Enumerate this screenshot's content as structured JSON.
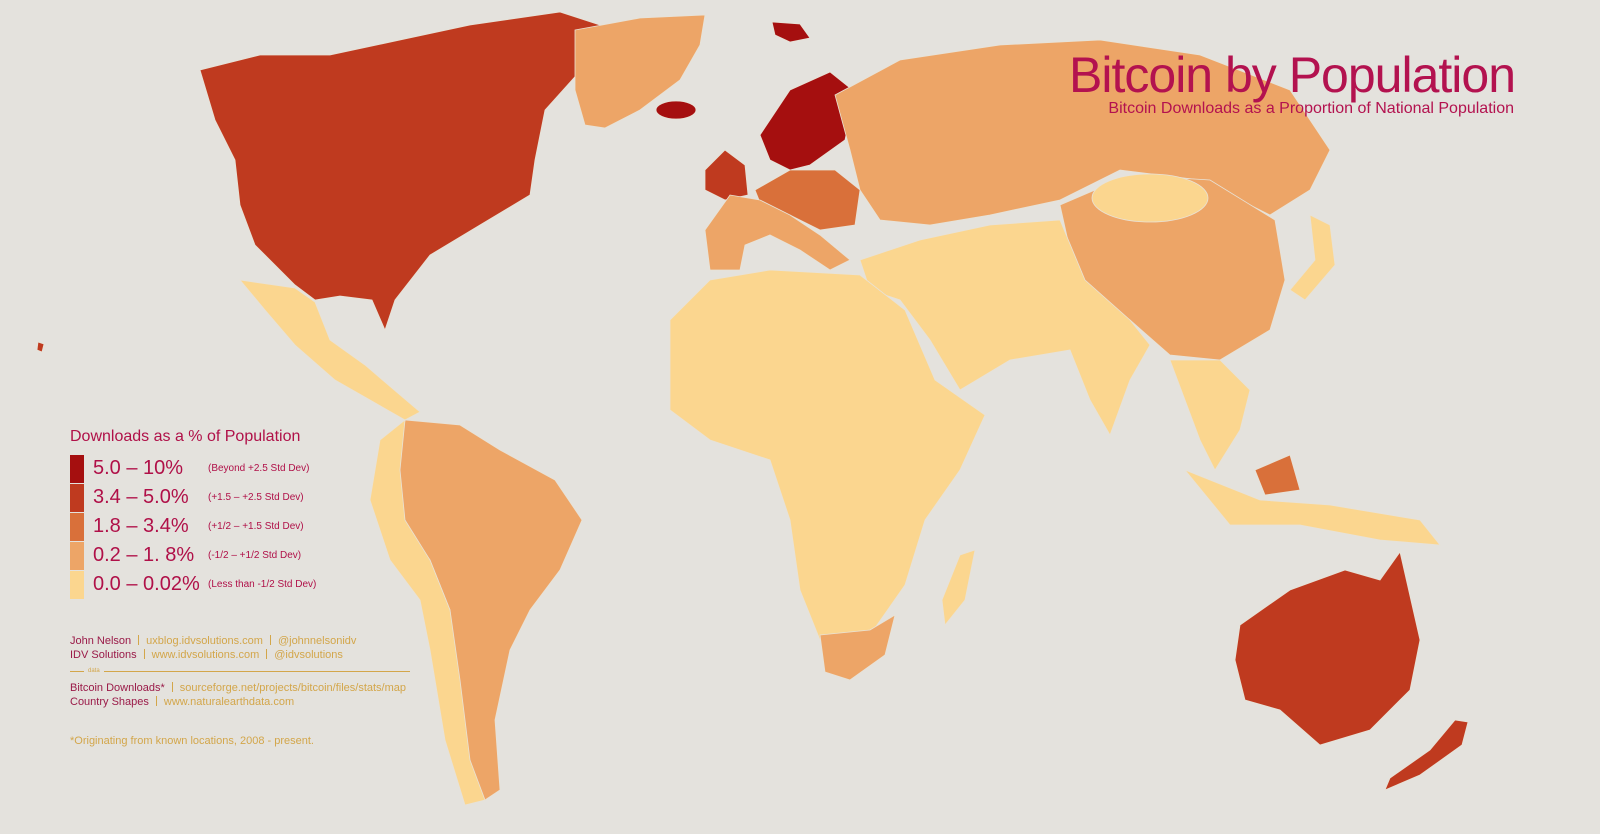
{
  "header": {
    "title": "Bitcoin by Population",
    "subtitle": "Bitcoin Downloads as a Proportion of National Population"
  },
  "legend": {
    "title": "Downloads as a % of Population",
    "items": [
      {
        "range": "5.0 – 10%",
        "note": "(Beyond +2.5 Std Dev)",
        "color": "#a50f0f"
      },
      {
        "range": "3.4 – 5.0%",
        "note": "(+1.5 – +2.5 Std Dev)",
        "color": "#bf3a1f"
      },
      {
        "range": "1.8 – 3.4%",
        "note": "(+1/2 – +1.5 Std Dev)",
        "color": "#d9703a"
      },
      {
        "range": "0.2 – 1. 8%",
        "note": "(-1/2 – +1/2 Std Dev)",
        "color": "#eda567"
      },
      {
        "range": "0.0 – 0.02%",
        "note": "(Less than -1/2 Std Dev)",
        "color": "#fbd68f"
      }
    ]
  },
  "credits": [
    {
      "name": "John Nelson",
      "links": [
        "uxblog.idvsolutions.com",
        "@johnnelsonidv"
      ]
    },
    {
      "name": "IDV Solutions",
      "links": [
        "www.idvsolutions.com",
        "@idvsolutions"
      ]
    }
  ],
  "divider_label": "data",
  "sources": [
    {
      "name": "Bitcoin Downloads*",
      "links": [
        "sourceforge.net/projects/bitcoin/files/stats/map"
      ]
    },
    {
      "name": "Country Shapes",
      "links": [
        "www.naturalearthdata.com"
      ]
    }
  ],
  "footnote": "*Originating from known locations, 2008 - present."
}
